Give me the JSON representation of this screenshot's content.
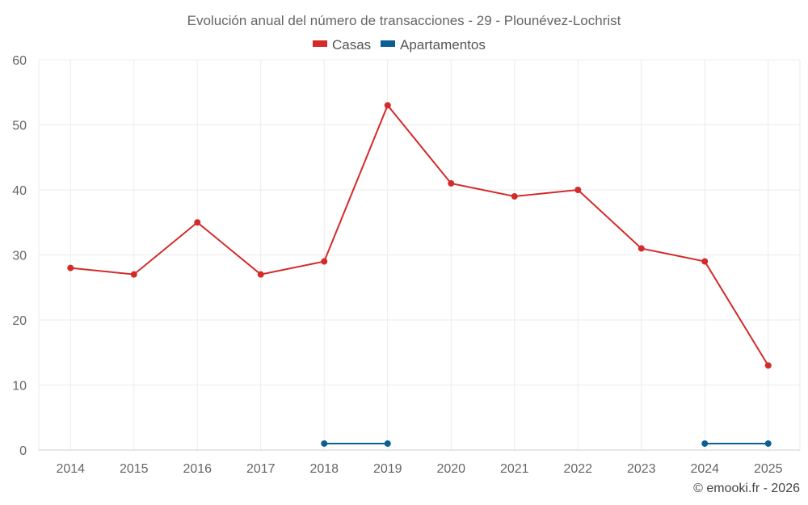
{
  "chart_data": {
    "type": "line",
    "title": "Evolución anual del número de transacciones - 29 - Plounévez-Lochrist",
    "categories": [
      "2014",
      "2015",
      "2016",
      "2017",
      "2018",
      "2019",
      "2020",
      "2021",
      "2022",
      "2023",
      "2024",
      "2025"
    ],
    "series": [
      {
        "name": "Casas",
        "color": "#d42a2a",
        "values": [
          28,
          27,
          35,
          27,
          29,
          53,
          41,
          39,
          40,
          31,
          29,
          13
        ]
      },
      {
        "name": "Apartamentos",
        "color": "#0c5f96",
        "values": [
          null,
          null,
          null,
          null,
          1,
          1,
          null,
          null,
          null,
          null,
          1,
          1
        ]
      }
    ],
    "ylim": [
      0,
      60
    ],
    "yticks": [
      "0",
      "10",
      "20",
      "30",
      "40",
      "50",
      "60"
    ],
    "xlabel": "",
    "ylabel": "",
    "legend_position": "top-center",
    "grid": true
  },
  "footer": {
    "credit": "© emooki.fr - 2026"
  }
}
